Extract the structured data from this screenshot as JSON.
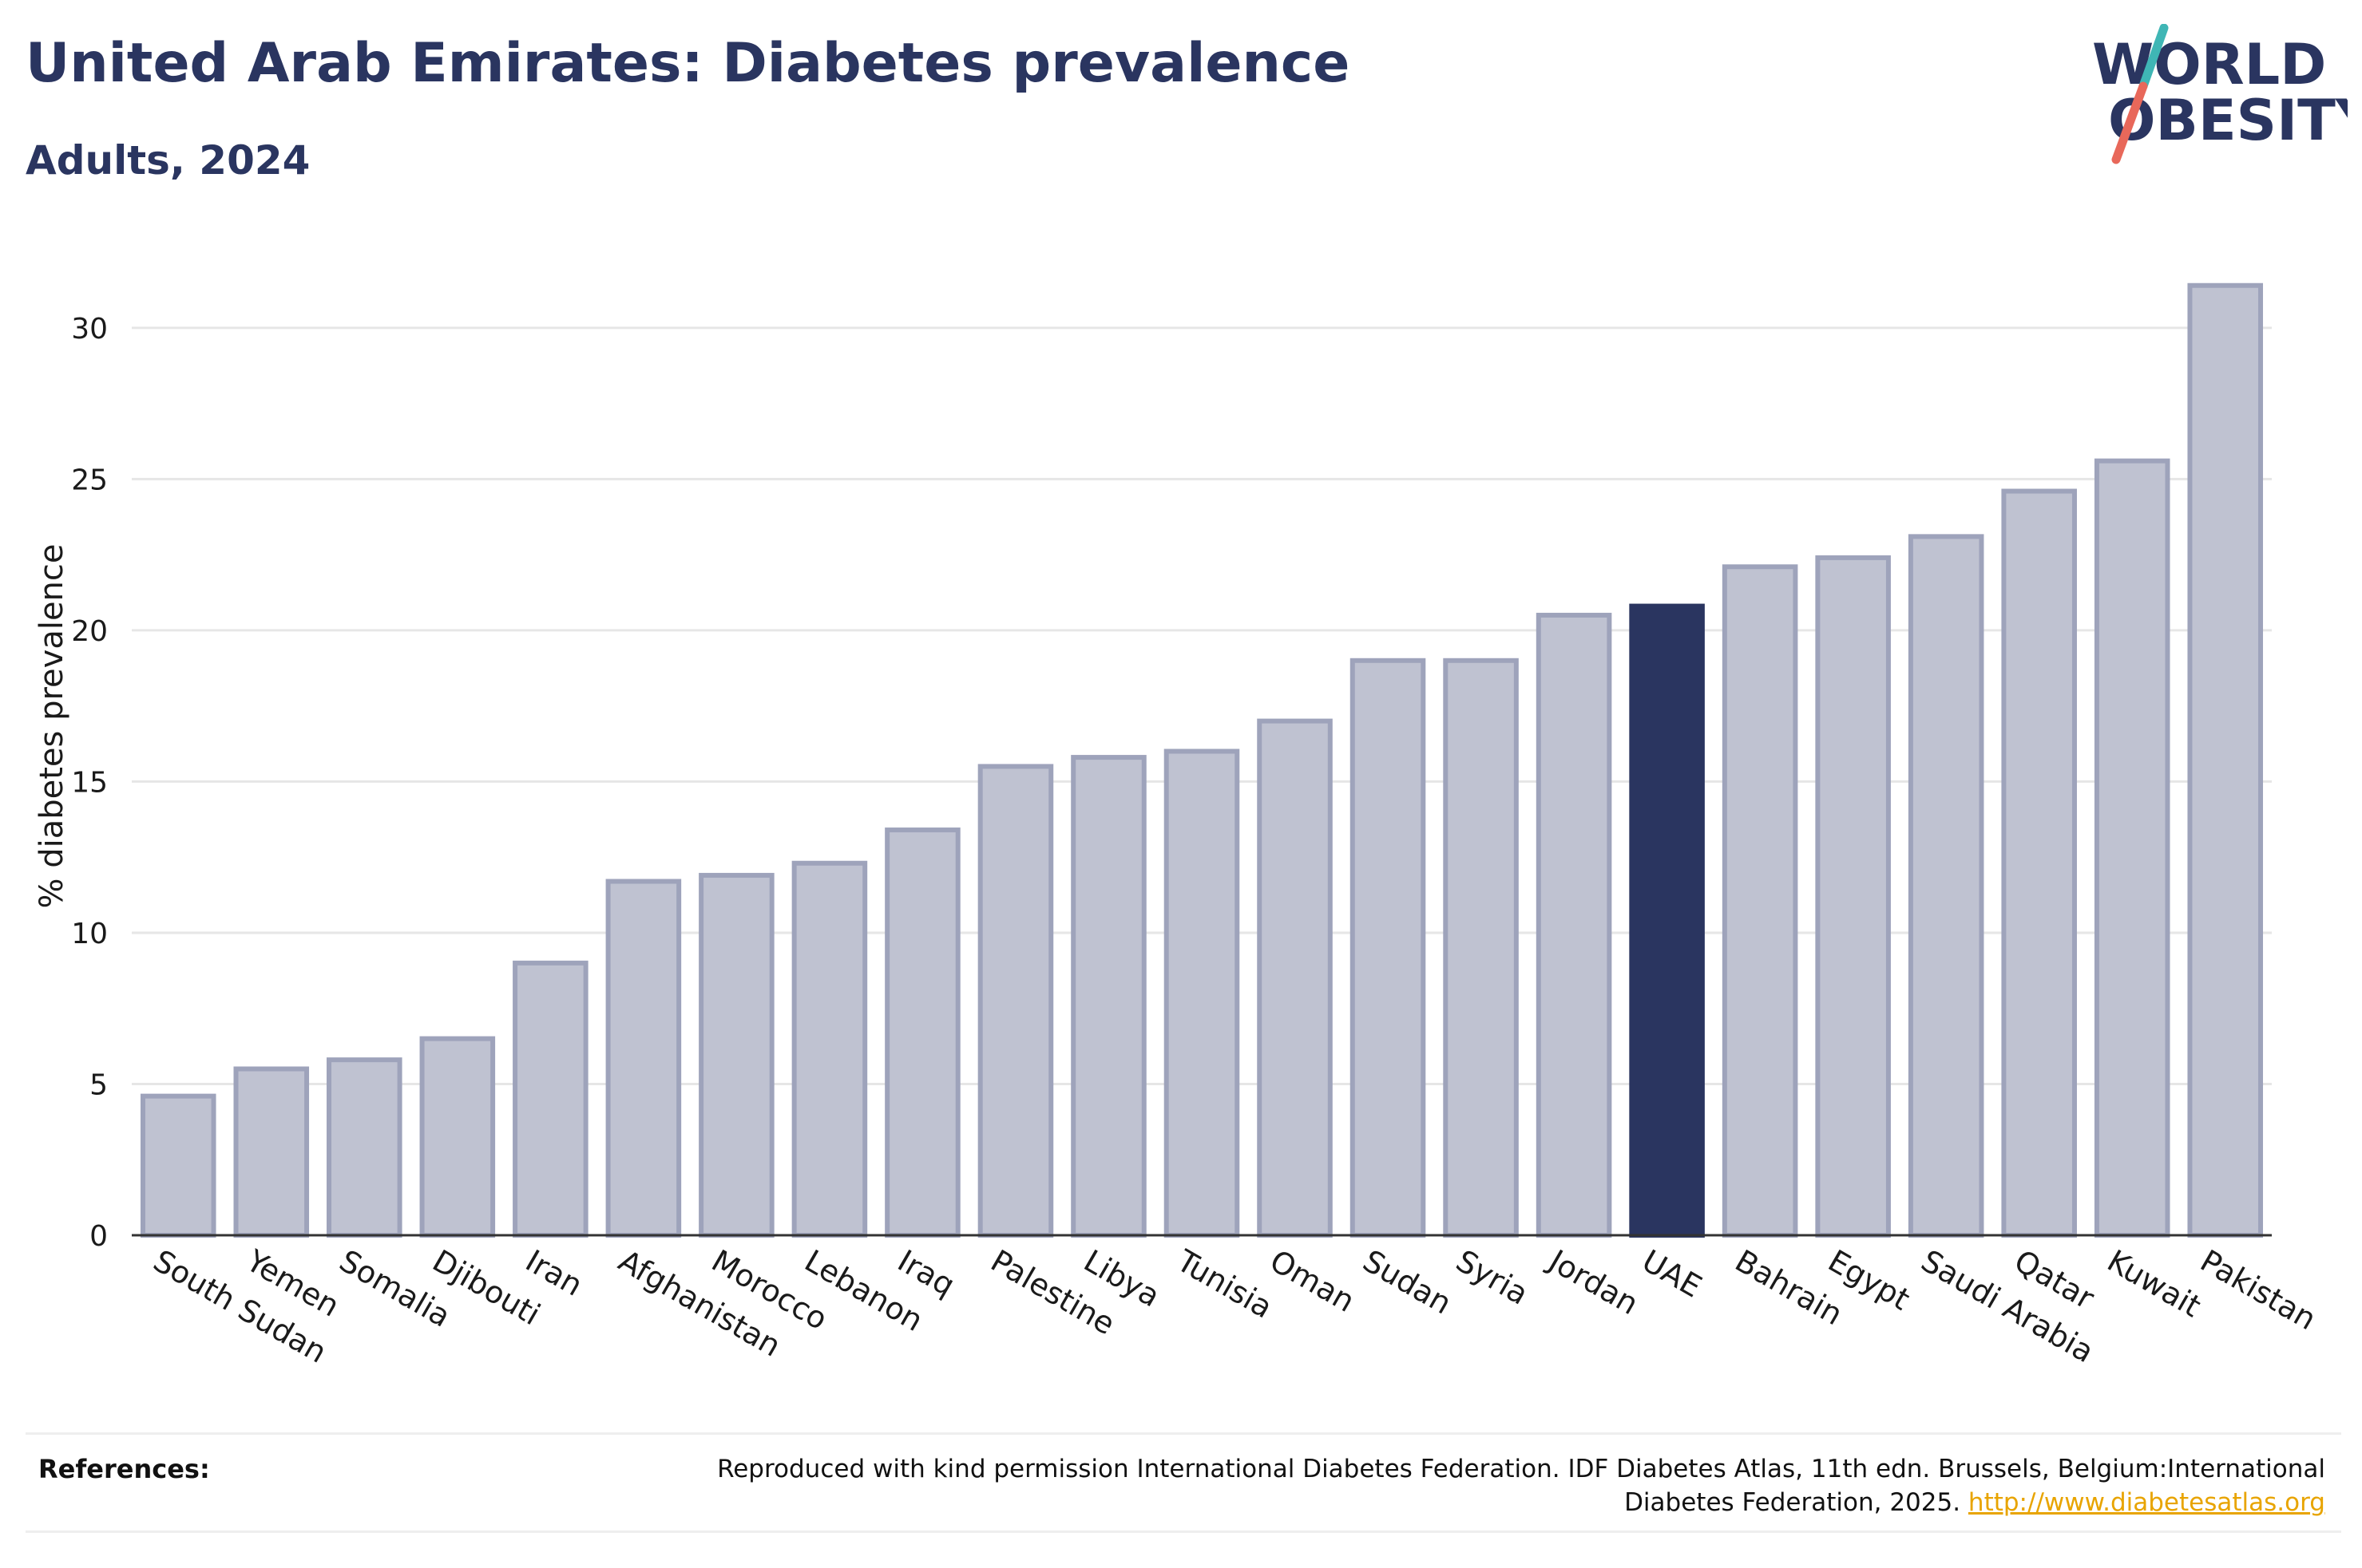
{
  "header": {
    "title": "United Arab Emirates: Diabetes prevalence",
    "subtitle": "Adults, 2024"
  },
  "logo": {
    "line1": "WORLD",
    "line2": "OBESITY",
    "accent_teal": "#3fb6b5",
    "accent_coral": "#e8685a"
  },
  "colors": {
    "bar": "#bfc2d1",
    "bar_stroke": "#9ea3bb",
    "highlight": "#2a3560",
    "grid": "#e6e6e6",
    "axis": "#333333"
  },
  "chart_data": {
    "type": "bar",
    "ylabel": "% diabetes prevalence",
    "ylim": [
      0,
      32
    ],
    "yticks": [
      0,
      5,
      10,
      15,
      20,
      25,
      30
    ],
    "grid": true,
    "highlight": "UAE",
    "categories": [
      "South Sudan",
      "Yemen",
      "Somalia",
      "Djibouti",
      "Iran",
      "Afghanistan",
      "Morocco",
      "Lebanon",
      "Iraq",
      "Palestine",
      "Libya",
      "Tunisia",
      "Oman",
      "Sudan",
      "Syria",
      "Jordan",
      "UAE",
      "Bahrain",
      "Egypt",
      "Saudi Arabia",
      "Qatar",
      "Kuwait",
      "Pakistan"
    ],
    "values": [
      4.6,
      5.5,
      5.8,
      6.5,
      9.0,
      11.7,
      11.9,
      12.3,
      13.4,
      15.5,
      15.8,
      16.0,
      17.0,
      19.0,
      19.0,
      20.5,
      20.8,
      22.1,
      22.4,
      23.1,
      24.6,
      25.6,
      31.4
    ]
  },
  "references": {
    "label": "References:",
    "text": "Reproduced with kind permission International Diabetes Federation. IDF Diabetes Atlas, 11th edn. Brussels, Belgium:International Diabetes Federation, 2025.",
    "link": "http://www.diabetesatlas.org"
  }
}
